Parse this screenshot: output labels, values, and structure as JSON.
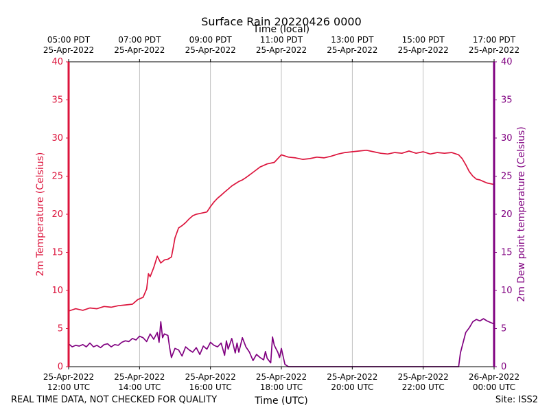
{
  "chart_data": {
    "type": "line",
    "title": "Surface Rain 20220426 0000",
    "top_xlabel": "Time (local)",
    "xlabel": "Time (UTC)",
    "ylabel_left": "2m Temperature (Celsius)",
    "ylabel_right": "2m Dew point temperature (Celsius)",
    "xlim_hours_utc": [
      12,
      24
    ],
    "ylim": [
      0,
      40
    ],
    "yticks": [
      0,
      5,
      10,
      15,
      20,
      25,
      30,
      35,
      40
    ],
    "bottom_ticks": [
      {
        "hour": 12,
        "line1": "25-Apr-2022",
        "line2": "12:00 UTC"
      },
      {
        "hour": 14,
        "line1": "25-Apr-2022",
        "line2": "14:00 UTC"
      },
      {
        "hour": 16,
        "line1": "25-Apr-2022",
        "line2": "16:00 UTC"
      },
      {
        "hour": 18,
        "line1": "25-Apr-2022",
        "line2": "18:00 UTC"
      },
      {
        "hour": 20,
        "line1": "25-Apr-2022",
        "line2": "20:00 UTC"
      },
      {
        "hour": 22,
        "line1": "25-Apr-2022",
        "line2": "22:00 UTC"
      },
      {
        "hour": 24,
        "line1": "26-Apr-2022",
        "line2": "00:00 UTC"
      }
    ],
    "top_ticks": [
      {
        "hour": 12,
        "line1": "05:00 PDT",
        "line2": "25-Apr-2022"
      },
      {
        "hour": 14,
        "line1": "07:00 PDT",
        "line2": "25-Apr-2022"
      },
      {
        "hour": 16,
        "line1": "09:00 PDT",
        "line2": "25-Apr-2022"
      },
      {
        "hour": 18,
        "line1": "11:00 PDT",
        "line2": "25-Apr-2022"
      },
      {
        "hour": 20,
        "line1": "13:00 PDT",
        "line2": "25-Apr-2022"
      },
      {
        "hour": 22,
        "line1": "15:00 PDT",
        "line2": "25-Apr-2022"
      },
      {
        "hour": 24,
        "line1": "17:00 PDT",
        "line2": "25-Apr-2022"
      }
    ],
    "series": [
      {
        "name": "2m Temperature",
        "color": "#dc143c",
        "x": [
          12.0,
          12.2,
          12.4,
          12.6,
          12.8,
          13.0,
          13.2,
          13.4,
          13.6,
          13.8,
          13.95,
          14.0,
          14.1,
          14.2,
          14.25,
          14.3,
          14.4,
          14.5,
          14.6,
          14.7,
          14.8,
          14.9,
          14.95,
          15.0,
          15.1,
          15.2,
          15.3,
          15.4,
          15.5,
          15.6,
          15.7,
          15.8,
          15.9,
          16.0,
          16.1,
          16.2,
          16.3,
          16.4,
          16.5,
          16.6,
          16.7,
          16.8,
          16.9,
          17.0,
          17.2,
          17.4,
          17.6,
          17.8,
          18.0,
          18.2,
          18.4,
          18.6,
          18.8,
          19.0,
          19.2,
          19.4,
          19.6,
          19.8,
          20.0,
          20.2,
          20.4,
          20.6,
          20.8,
          21.0,
          21.2,
          21.4,
          21.6,
          21.8,
          22.0,
          22.2,
          22.4,
          22.6,
          22.8,
          23.0,
          23.1,
          23.2,
          23.3,
          23.4,
          23.5,
          23.6,
          23.7,
          23.8,
          23.9,
          24.0
        ],
        "values": [
          7.3,
          7.6,
          7.4,
          7.7,
          7.6,
          7.9,
          7.8,
          8.0,
          8.1,
          8.2,
          8.8,
          8.9,
          9.1,
          10.2,
          12.2,
          11.8,
          13.0,
          14.5,
          13.6,
          14.0,
          14.1,
          14.4,
          15.6,
          16.9,
          18.2,
          18.5,
          18.9,
          19.4,
          19.8,
          20.0,
          20.1,
          20.2,
          20.3,
          21.0,
          21.6,
          22.1,
          22.5,
          22.9,
          23.3,
          23.7,
          24.0,
          24.3,
          24.5,
          24.8,
          25.5,
          26.2,
          26.6,
          26.8,
          27.8,
          27.5,
          27.4,
          27.2,
          27.3,
          27.5,
          27.4,
          27.6,
          27.9,
          28.1,
          28.2,
          28.3,
          28.4,
          28.2,
          28.0,
          27.9,
          28.1,
          28.0,
          28.3,
          28.0,
          28.2,
          27.9,
          28.1,
          28.0,
          28.1,
          27.8,
          27.3,
          26.5,
          25.6,
          25.0,
          24.6,
          24.5,
          24.3,
          24.1,
          24.0,
          23.9
        ]
      },
      {
        "name": "2m Dew point temperature",
        "color": "#800080",
        "x": [
          12.0,
          12.1,
          12.2,
          12.3,
          12.4,
          12.5,
          12.6,
          12.7,
          12.8,
          12.9,
          13.0,
          13.1,
          13.2,
          13.3,
          13.4,
          13.5,
          13.6,
          13.7,
          13.8,
          13.9,
          14.0,
          14.1,
          14.2,
          14.3,
          14.4,
          14.5,
          14.55,
          14.6,
          14.65,
          14.7,
          14.8,
          14.85,
          14.9,
          15.0,
          15.1,
          15.2,
          15.3,
          15.4,
          15.5,
          15.6,
          15.7,
          15.8,
          15.9,
          16.0,
          16.1,
          16.2,
          16.3,
          16.4,
          16.45,
          16.5,
          16.6,
          16.7,
          16.75,
          16.8,
          16.9,
          17.0,
          17.1,
          17.2,
          17.3,
          17.4,
          17.5,
          17.55,
          17.6,
          17.7,
          17.75,
          17.8,
          17.9,
          17.95,
          18.0,
          18.1,
          18.2,
          18.3,
          18.4,
          18.5,
          18.6,
          18.7,
          18.8,
          18.9,
          19.0,
          19.2,
          19.4,
          19.6,
          19.8,
          20.0,
          20.2,
          20.4,
          20.6,
          20.8,
          21.0,
          21.5,
          22.0,
          22.5,
          23.0,
          23.05,
          23.1,
          23.2,
          23.3,
          23.4,
          23.5,
          23.6,
          23.7,
          23.8,
          23.9,
          24.0
        ],
        "values": [
          3.0,
          2.6,
          2.8,
          2.7,
          2.9,
          2.6,
          3.1,
          2.6,
          2.8,
          2.5,
          2.9,
          3.0,
          2.6,
          2.9,
          2.8,
          3.2,
          3.4,
          3.3,
          3.7,
          3.5,
          4.0,
          3.8,
          3.3,
          4.3,
          3.6,
          4.5,
          3.2,
          5.9,
          3.8,
          4.3,
          4.1,
          2.5,
          1.2,
          2.4,
          2.2,
          1.4,
          2.6,
          2.2,
          1.9,
          2.5,
          1.6,
          2.7,
          2.3,
          3.2,
          2.8,
          2.6,
          3.1,
          1.5,
          3.4,
          2.3,
          3.7,
          1.8,
          3.1,
          1.9,
          3.8,
          2.6,
          1.9,
          0.8,
          1.6,
          1.2,
          0.9,
          2.0,
          1.1,
          0.5,
          3.9,
          2.8,
          1.9,
          1.2,
          2.4,
          0.3,
          0,
          0,
          0,
          0,
          0,
          0,
          0,
          0,
          0,
          0,
          0,
          0,
          0,
          0,
          0,
          0,
          0,
          0,
          0,
          0,
          0,
          0,
          0,
          1.8,
          2.7,
          4.5,
          5.1,
          5.9,
          6.2,
          6.0,
          6.3,
          6.0,
          5.8,
          5.6
        ]
      }
    ]
  },
  "footer": {
    "disclaimer": "REAL TIME DATA, NOT CHECKED FOR QUALITY",
    "site": "Site: ISS2"
  }
}
